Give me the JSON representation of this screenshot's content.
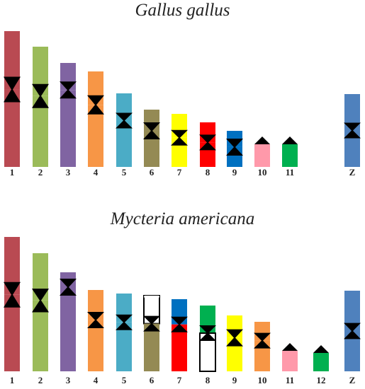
{
  "panels": [
    {
      "title": "Gallus gallus",
      "chromosomes": [
        {
          "label": "1",
          "bands": [
            {
              "color": "#b94a52"
            },
            {
              "color": "#b94a52"
            }
          ],
          "centromere": "mid",
          "top_fraction": 0.43
        },
        {
          "label": "2",
          "bands": [
            {
              "color": "#9bbb59"
            },
            {
              "color": "#9bbb59"
            }
          ],
          "centromere": "mid",
          "top_fraction": 0.41
        },
        {
          "label": "3",
          "bands": [
            {
              "color": "#8064a2"
            }
          ],
          "centromere": "near-top",
          "top_fraction": 0.26
        },
        {
          "label": "4",
          "bands": [
            {
              "color": "#f79646"
            },
            {
              "color": "#f79646"
            }
          ],
          "centromere": "mid",
          "top_fraction": 0.35
        },
        {
          "label": "5",
          "bands": [
            {
              "color": "#4bacc6"
            },
            {
              "color": "#4bacc6"
            }
          ],
          "centromere": "mid",
          "top_fraction": 0.37
        },
        {
          "label": "6",
          "bands": [
            {
              "color": "#948a54"
            }
          ],
          "centromere": "top",
          "top_fraction": 0.37
        },
        {
          "label": "7",
          "bands": [
            {
              "color": "#ffff00"
            },
            {
              "color": "#ffff00"
            }
          ],
          "centromere": "mid",
          "top_fraction": 0.45
        },
        {
          "label": "8",
          "bands": [
            {
              "color": "#ff0000"
            },
            {
              "color": "#ff0000"
            }
          ],
          "centromere": "mid",
          "top_fraction": 0.45
        },
        {
          "label": "9",
          "bands": [
            {
              "color": "#0070c0"
            }
          ],
          "centromere": "top",
          "top_fraction": 0.45
        },
        {
          "label": "10",
          "bands": [
            {
              "color": "#ff99aa"
            }
          ],
          "centromere": "tip",
          "top_fraction": 0.0
        },
        {
          "label": "11",
          "bands": [
            {
              "color": "#00b050"
            }
          ],
          "centromere": "tip",
          "top_fraction": 0.0
        },
        {
          "label": "Z",
          "bands": [
            {
              "color": "#4f81bd"
            },
            {
              "color": "#4f81bd"
            }
          ],
          "centromere": "mid",
          "top_fraction": 0.5
        }
      ]
    },
    {
      "title": "Mycteria americana",
      "chromosomes": [
        {
          "label": "1",
          "bands": [
            {
              "color": "#b94a52"
            },
            {
              "color": "#b94a52"
            }
          ],
          "centromere": "mid",
          "top_fraction": 0.43
        },
        {
          "label": "2",
          "bands": [
            {
              "color": "#9bbb59"
            },
            {
              "color": "#9bbb59"
            }
          ],
          "centromere": "mid",
          "top_fraction": 0.4
        },
        {
          "label": "3",
          "bands": [
            {
              "color": "#8064a2"
            }
          ],
          "centromere": "near-top",
          "top_fraction": 0.15
        },
        {
          "label": "4",
          "bands": [
            {
              "color": "#f79646"
            },
            {
              "color": "#f79646"
            }
          ],
          "centromere": "mid",
          "top_fraction": 0.37
        },
        {
          "label": "5",
          "bands": [
            {
              "color": "#4bacc6"
            },
            {
              "color": "#4bacc6"
            }
          ],
          "centromere": "mid",
          "top_fraction": 0.37
        },
        {
          "label": "6",
          "bands": [
            {
              "color": "#ffffff"
            },
            {
              "color": "#948a54"
            }
          ],
          "centromere": "mid",
          "top_fraction": 0.37
        },
        {
          "label": "7",
          "bands": [
            {
              "color": "#0070c0"
            },
            {
              "color": "#ff0000"
            }
          ],
          "centromere": "mid",
          "top_fraction": 0.35
        },
        {
          "label": "8",
          "bands": [
            {
              "color": "#00b050"
            },
            {
              "color": "#ffffff"
            }
          ],
          "centromere": "mid",
          "top_fraction": 0.42
        },
        {
          "label": "9",
          "bands": [
            {
              "color": "#ffff00"
            }
          ],
          "centromere": "top",
          "top_fraction": 0.4
        },
        {
          "label": "10",
          "bands": [
            {
              "color": "#f79646"
            },
            {
              "color": "#f79646"
            }
          ],
          "centromere": "mid",
          "top_fraction": 0.38
        },
        {
          "label": "11",
          "bands": [
            {
              "color": "#ff99aa"
            }
          ],
          "centromere": "tip",
          "top_fraction": 0.0
        },
        {
          "label": "12",
          "bands": [
            {
              "color": "#00b050"
            }
          ],
          "centromere": "tip",
          "top_fraction": 0.0
        },
        {
          "label": "Z",
          "bands": [
            {
              "color": "#4f81bd"
            },
            {
              "color": "#4f81bd"
            }
          ],
          "centromere": "mid",
          "top_fraction": 0.5
        }
      ]
    }
  ]
}
